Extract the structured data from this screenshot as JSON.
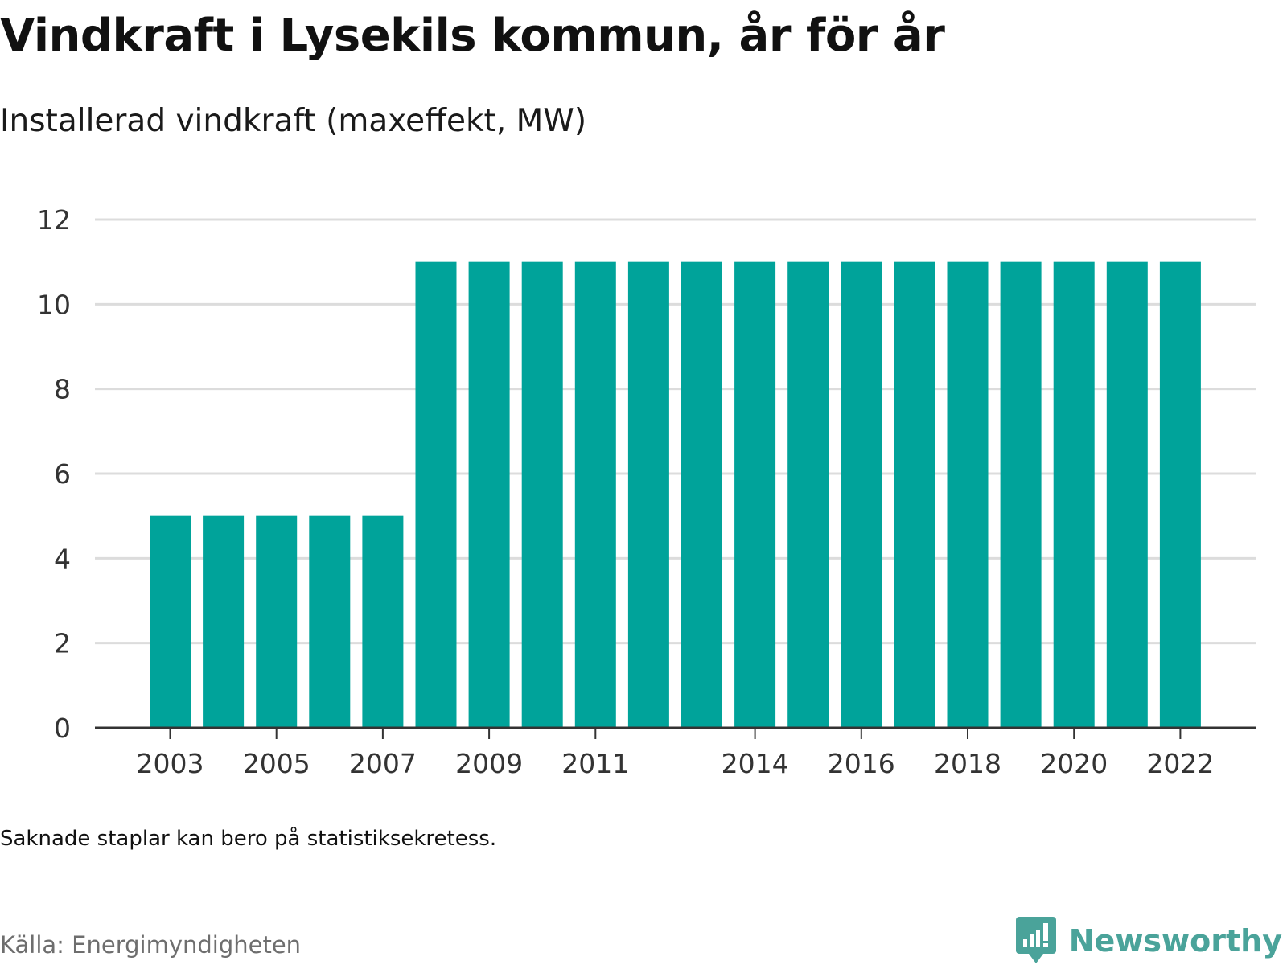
{
  "title": "Vindkraft i Lysekils kommun, år för år",
  "subtitle": "Installerad vindkraft (maxeffekt, MW)",
  "note": "Saknade staplar kan bero på statistiksekretess.",
  "source": "Källa: Energimyndigheten",
  "brand": {
    "name": "Newsworthy",
    "icon": "newsworthy-logo-icon"
  },
  "colors": {
    "bar": "#00a39a",
    "grid": "#dcdcdc",
    "axis": "#333333",
    "tick_text": "#333333",
    "brand": "#4aa39a"
  },
  "chart_data": {
    "type": "bar",
    "categories": [
      "2003",
      "2004",
      "2005",
      "2006",
      "2007",
      "2008",
      "2009",
      "2010",
      "2011",
      "2012",
      "2013",
      "2014",
      "2015",
      "2016",
      "2017",
      "2018",
      "2019",
      "2020",
      "2021",
      "2022"
    ],
    "values": [
      5,
      5,
      5,
      5,
      5,
      11,
      11,
      11,
      11,
      11,
      11,
      11,
      11,
      11,
      11,
      11,
      11,
      11,
      11,
      11
    ],
    "x_tick_labels": [
      "2003",
      "2005",
      "2007",
      "2009",
      "2011",
      "2014",
      "2016",
      "2018",
      "2020",
      "2022"
    ],
    "y_ticks": [
      0,
      2,
      4,
      6,
      8,
      10,
      12
    ],
    "ylim": [
      0,
      12
    ],
    "xlabel": "",
    "ylabel": "",
    "grid": true
  }
}
